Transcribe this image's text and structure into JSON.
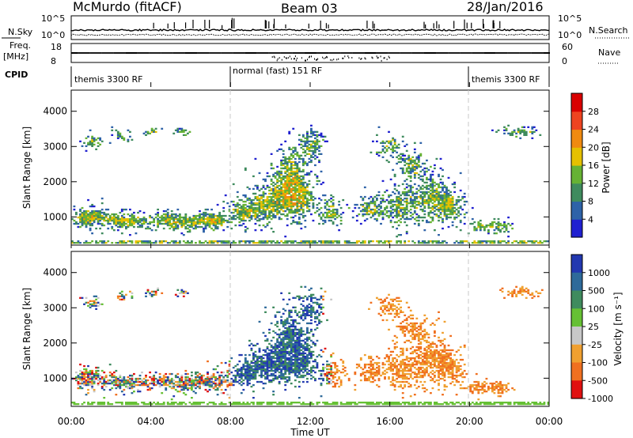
{
  "header": {
    "title": "McMurdo (fitACF)",
    "beam": "Beam 03",
    "date": "28/Jan/2016"
  },
  "top_panels": {
    "nsky_label": "N.Sky",
    "nsky_ticks": [
      "10^5",
      "10^0"
    ],
    "nsearch_label": "N.Search",
    "nsearch_ticks": [
      "10^5",
      "10^0"
    ],
    "freq_label": "Freq.",
    "freq_unit": "[MHz]",
    "freq_ticks": [
      "18",
      "8"
    ],
    "nave_label": "Nave",
    "nave_ticks": [
      "60",
      "0"
    ],
    "cpid_label": "CPID",
    "cpid_segments": [
      "themis 3300 RF",
      "normal (fast) 151 RF",
      "themis 3300 RF"
    ]
  },
  "chart_data": [
    {
      "type": "heatmap",
      "name": "power",
      "ylabel": "Slant Range [km]",
      "yticks": [
        "1000",
        "2000",
        "3000",
        "4000"
      ],
      "ylim": [
        200,
        4600
      ],
      "colorbar_label": "Power [dB]",
      "colorbar_ticks": [
        "4",
        "8",
        "12",
        "16",
        "20",
        "24",
        "28"
      ],
      "colors": [
        "#2020d0",
        "#2e62a8",
        "#3f8b5e",
        "#66b234",
        "#e5c000",
        "#f08a10",
        "#ee4420",
        "#d90000"
      ]
    },
    {
      "type": "heatmap",
      "name": "velocity",
      "ylabel": "Slant Range [km]",
      "yticks": [
        "1000",
        "2000",
        "3000",
        "4000"
      ],
      "ylim": [
        200,
        4600
      ],
      "colorbar_label": "Velocity [m s⁻¹]",
      "colorbar_ticks": [
        "1000",
        "500",
        "100",
        "25",
        "-25",
        "-100",
        "-500",
        "-1000"
      ],
      "colors": [
        "#2238b0",
        "#2e6a9a",
        "#3f8b5e",
        "#66c034",
        "#c8c8c8",
        "#f0a030",
        "#f07020",
        "#e01010"
      ]
    }
  ],
  "xaxis": {
    "label": "Time UT",
    "ticks": [
      "00:00",
      "04:00",
      "08:00",
      "12:00",
      "16:00",
      "20:00",
      "00:00"
    ]
  }
}
